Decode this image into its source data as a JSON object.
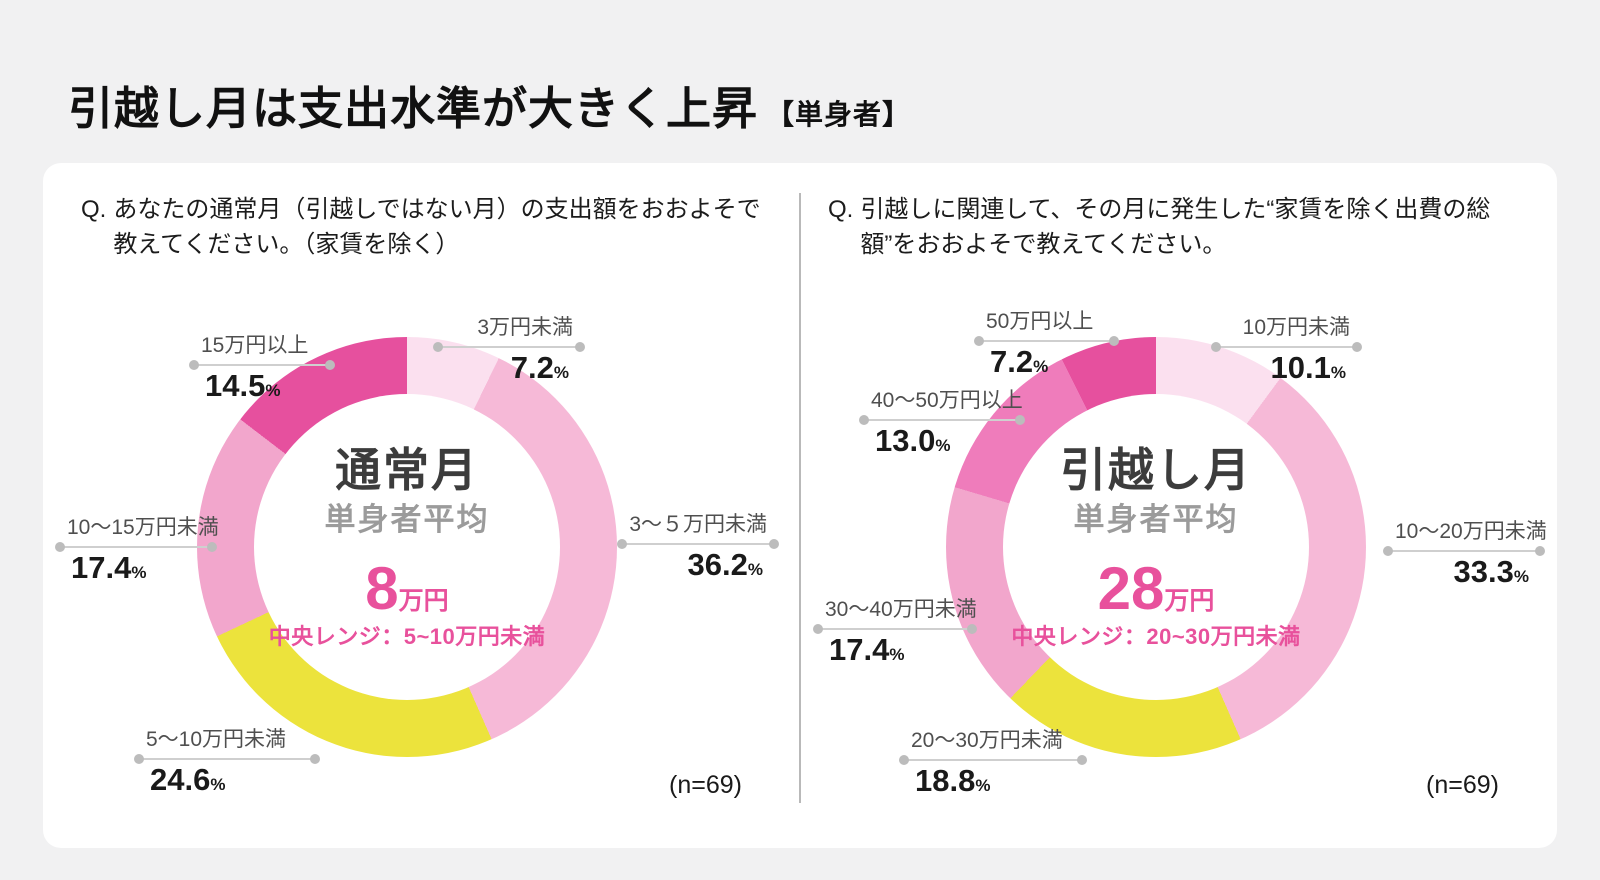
{
  "header": {
    "title": "引越し月は支出水準が大きく上昇",
    "tag": "【単身者】"
  },
  "symbols": {
    "percent": "%",
    "q_prefix": "Q."
  },
  "chart_data": [
    {
      "type": "pie",
      "variant": "donut",
      "question": "あなたの通常月（引越しではない月）の支出額をおおよそで教えてください。（家賃を除く）",
      "center": {
        "title": "通常月",
        "subtitle": "単身者平均",
        "value": "8",
        "unit": "万円",
        "median": "中央レンジ：5~10万円未満"
      },
      "sample": "(n=69)",
      "legend_position": "callout-labels",
      "start_angle_deg": 0,
      "direction": "clockwise",
      "categories": [
        "3万円未満",
        "3〜５万円未満",
        "5〜10万円未満",
        "10〜15万円未満",
        "15万円以上"
      ],
      "values": [
        7.2,
        36.2,
        24.6,
        17.4,
        14.5
      ],
      "colors": [
        "#FBE0EF",
        "#F6B9D7",
        "#ECE33C",
        "#F2A6CC",
        "#E6509E"
      ],
      "segments": [
        {
          "label": "3万円未満",
          "pct": "7.2",
          "color": "#FBE0EF"
        },
        {
          "label": "3〜５万円未満",
          "pct": "36.2",
          "color": "#F6B9D7"
        },
        {
          "label": "5〜10万円未満",
          "pct": "24.6",
          "color": "#ECE33C"
        },
        {
          "label": "10〜15万円未満",
          "pct": "17.4",
          "color": "#F2A6CC"
        },
        {
          "label": "15万円以上",
          "pct": "14.5",
          "color": "#E6509E"
        }
      ]
    },
    {
      "type": "pie",
      "variant": "donut",
      "question": "引越しに関連して、その月に発生した“家賃を除く出費の総額”をおおよそで教えてください。",
      "center": {
        "title": "引越し月",
        "subtitle": "単身者平均",
        "value": "28",
        "unit": "万円",
        "median": "中央レンジ：20~30万円未満"
      },
      "sample": "(n=69)",
      "legend_position": "callout-labels",
      "start_angle_deg": 0,
      "direction": "clockwise",
      "categories": [
        "10万円未満",
        "10〜20万円未満",
        "20〜30万円未満",
        "30〜40万円未満",
        "40〜50万円以上",
        "50万円以上"
      ],
      "values": [
        10.1,
        33.3,
        18.8,
        17.4,
        13.0,
        7.2
      ],
      "colors": [
        "#FBE0EF",
        "#F6B9D7",
        "#ECE33C",
        "#F2A6CC",
        "#EF7CBB",
        "#E6509E"
      ],
      "segments": [
        {
          "label": "10万円未満",
          "pct": "10.1",
          "color": "#FBE0EF"
        },
        {
          "label": "10〜20万円未満",
          "pct": "33.3",
          "color": "#F6B9D7"
        },
        {
          "label": "20〜30万円未満",
          "pct": "18.8",
          "color": "#ECE33C"
        },
        {
          "label": "30〜40万円未満",
          "pct": "17.4",
          "color": "#F2A6CC"
        },
        {
          "label": "40〜50万円以上",
          "pct": "13.0",
          "color": "#EF7CBB"
        },
        {
          "label": "50万円以上",
          "pct": "7.2",
          "color": "#E6509E"
        }
      ]
    }
  ]
}
